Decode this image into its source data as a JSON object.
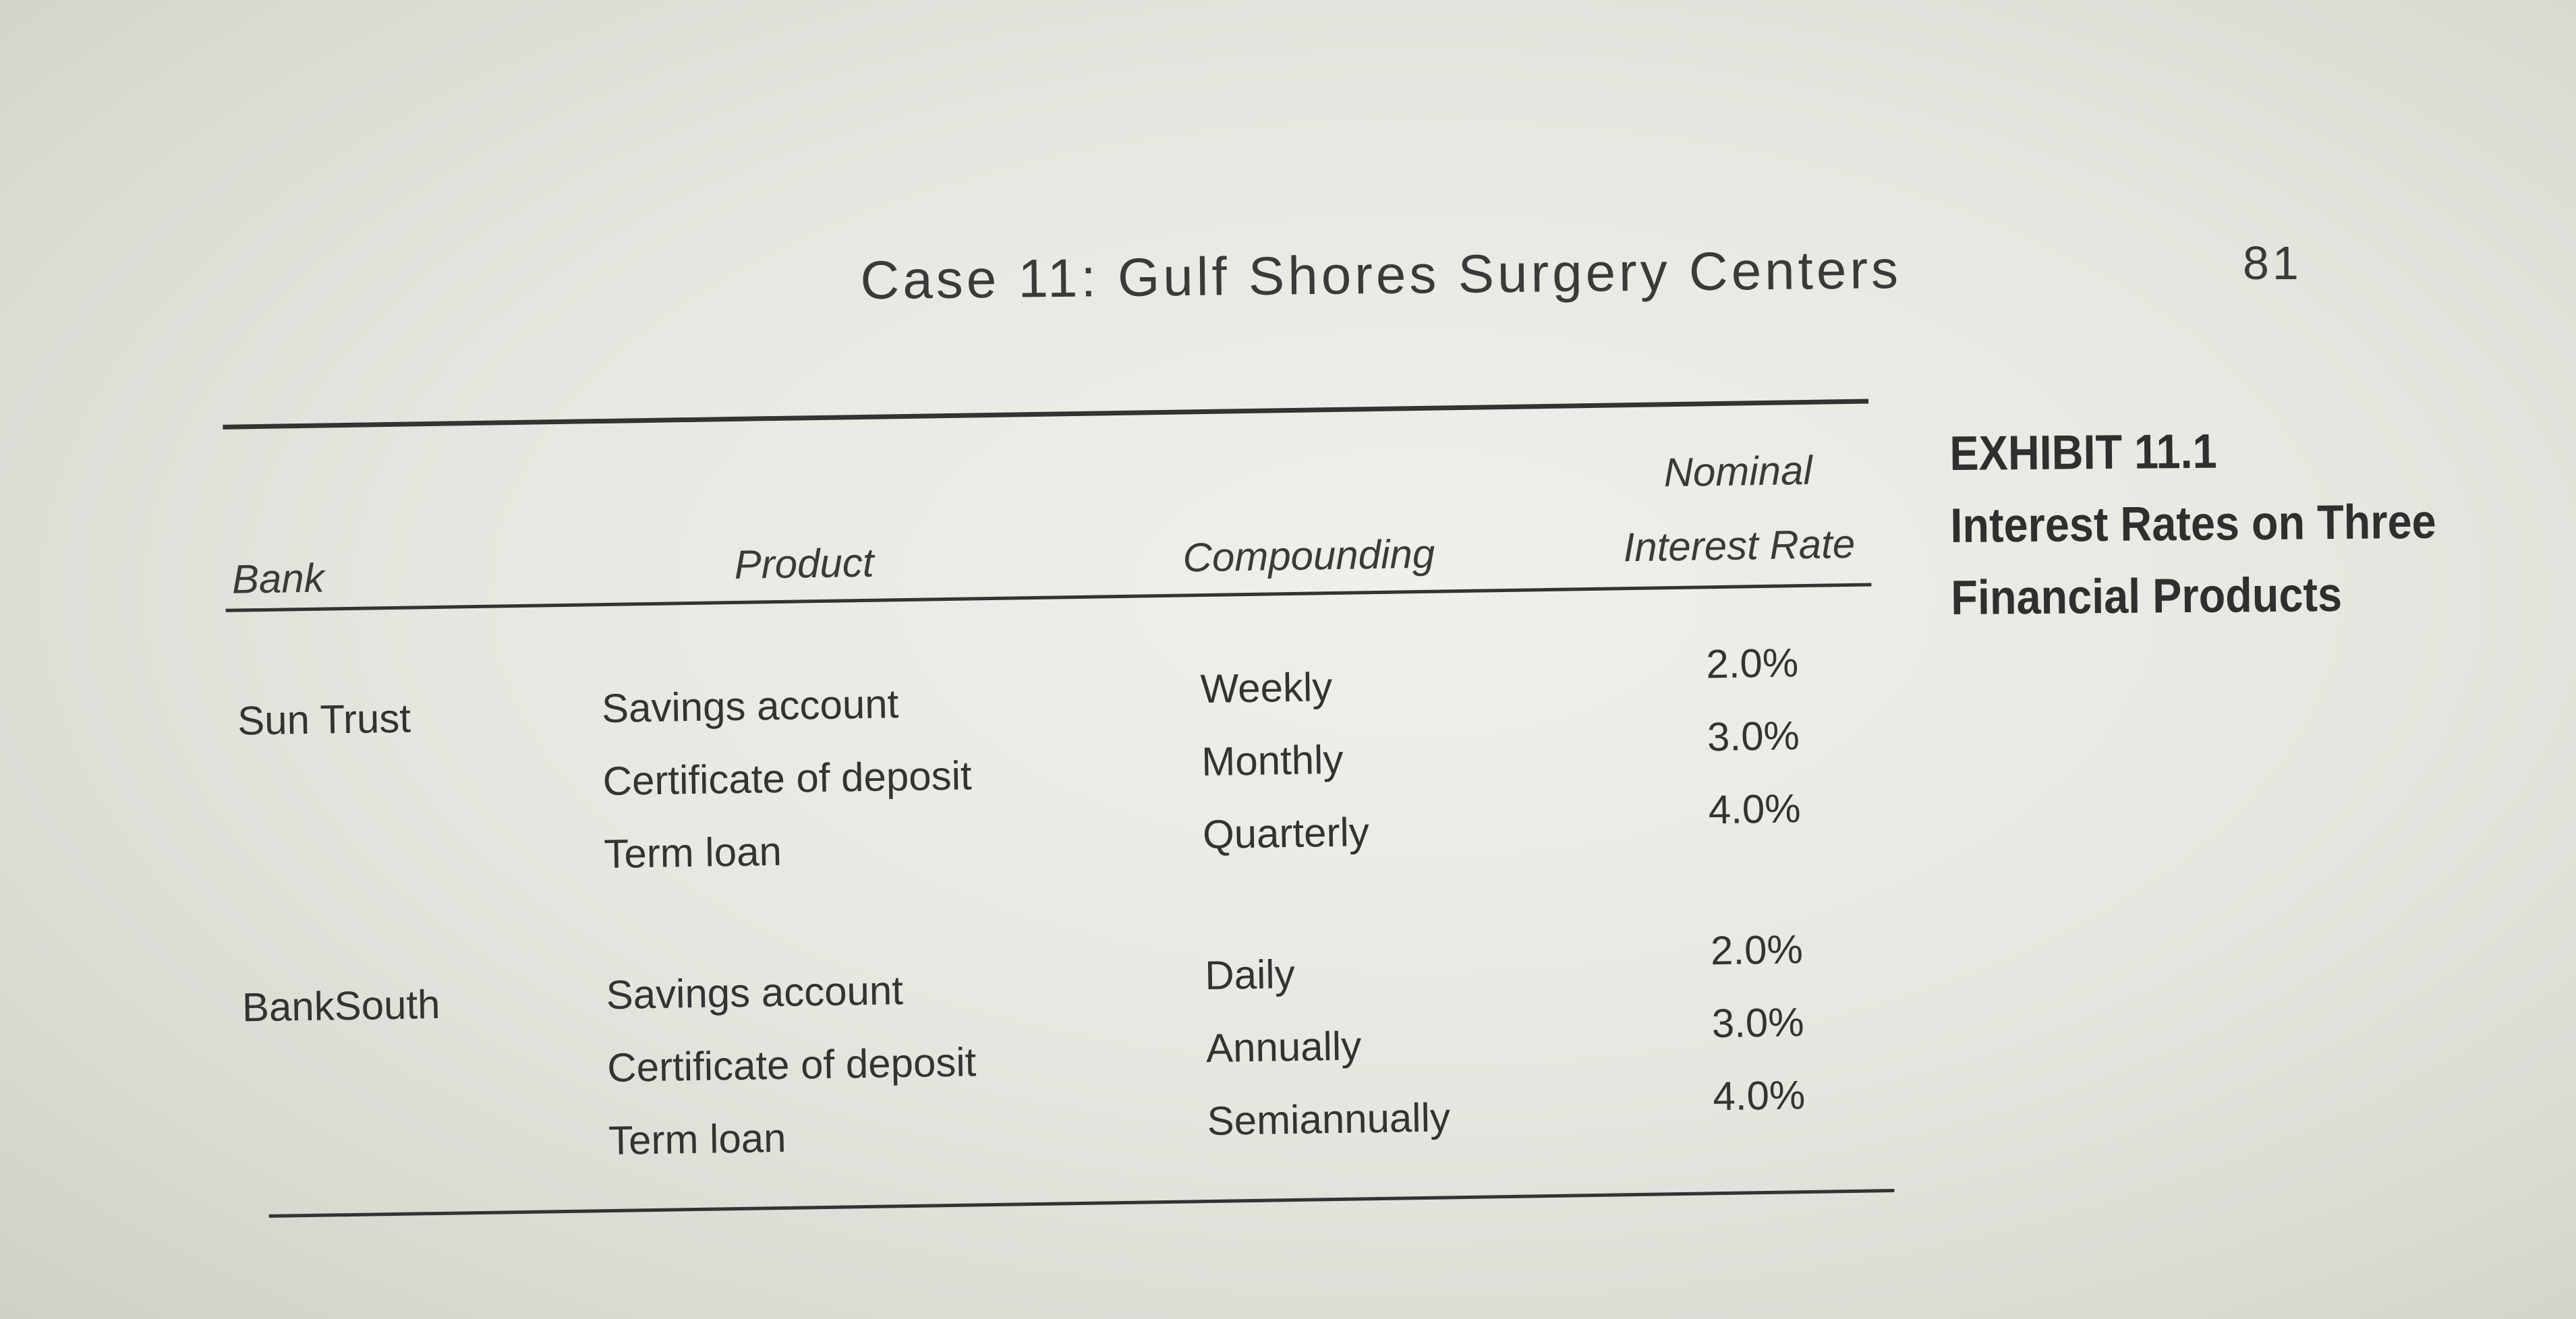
{
  "header": {
    "title": "Case 11: Gulf Shores Surgery Centers",
    "page_number": "81"
  },
  "exhibit": {
    "label": "EXHIBIT 11.1",
    "caption_line1": "Interest Rates on Three",
    "caption_line2": "Financial Products"
  },
  "table": {
    "columns": {
      "bank": "Bank",
      "product": "Product",
      "compounding": "Compounding",
      "rate_line1": "Nominal",
      "rate_line2": "Interest Rate"
    },
    "groups": [
      {
        "bank": "Sun Trust",
        "rows": [
          {
            "product": "Savings account",
            "compounding": "Weekly",
            "rate": "2.0%"
          },
          {
            "product": "Certificate of deposit",
            "compounding": "Monthly",
            "rate": "3.0%"
          },
          {
            "product": "Term loan",
            "compounding": "Quarterly",
            "rate": "4.0%"
          }
        ]
      },
      {
        "bank": "BankSouth",
        "rows": [
          {
            "product": "Savings account",
            "compounding": "Daily",
            "rate": "2.0%"
          },
          {
            "product": "Certificate of deposit",
            "compounding": "Annually",
            "rate": "3.0%"
          },
          {
            "product": "Term loan",
            "compounding": "Semiannually",
            "rate": "4.0%"
          }
        ]
      }
    ]
  }
}
